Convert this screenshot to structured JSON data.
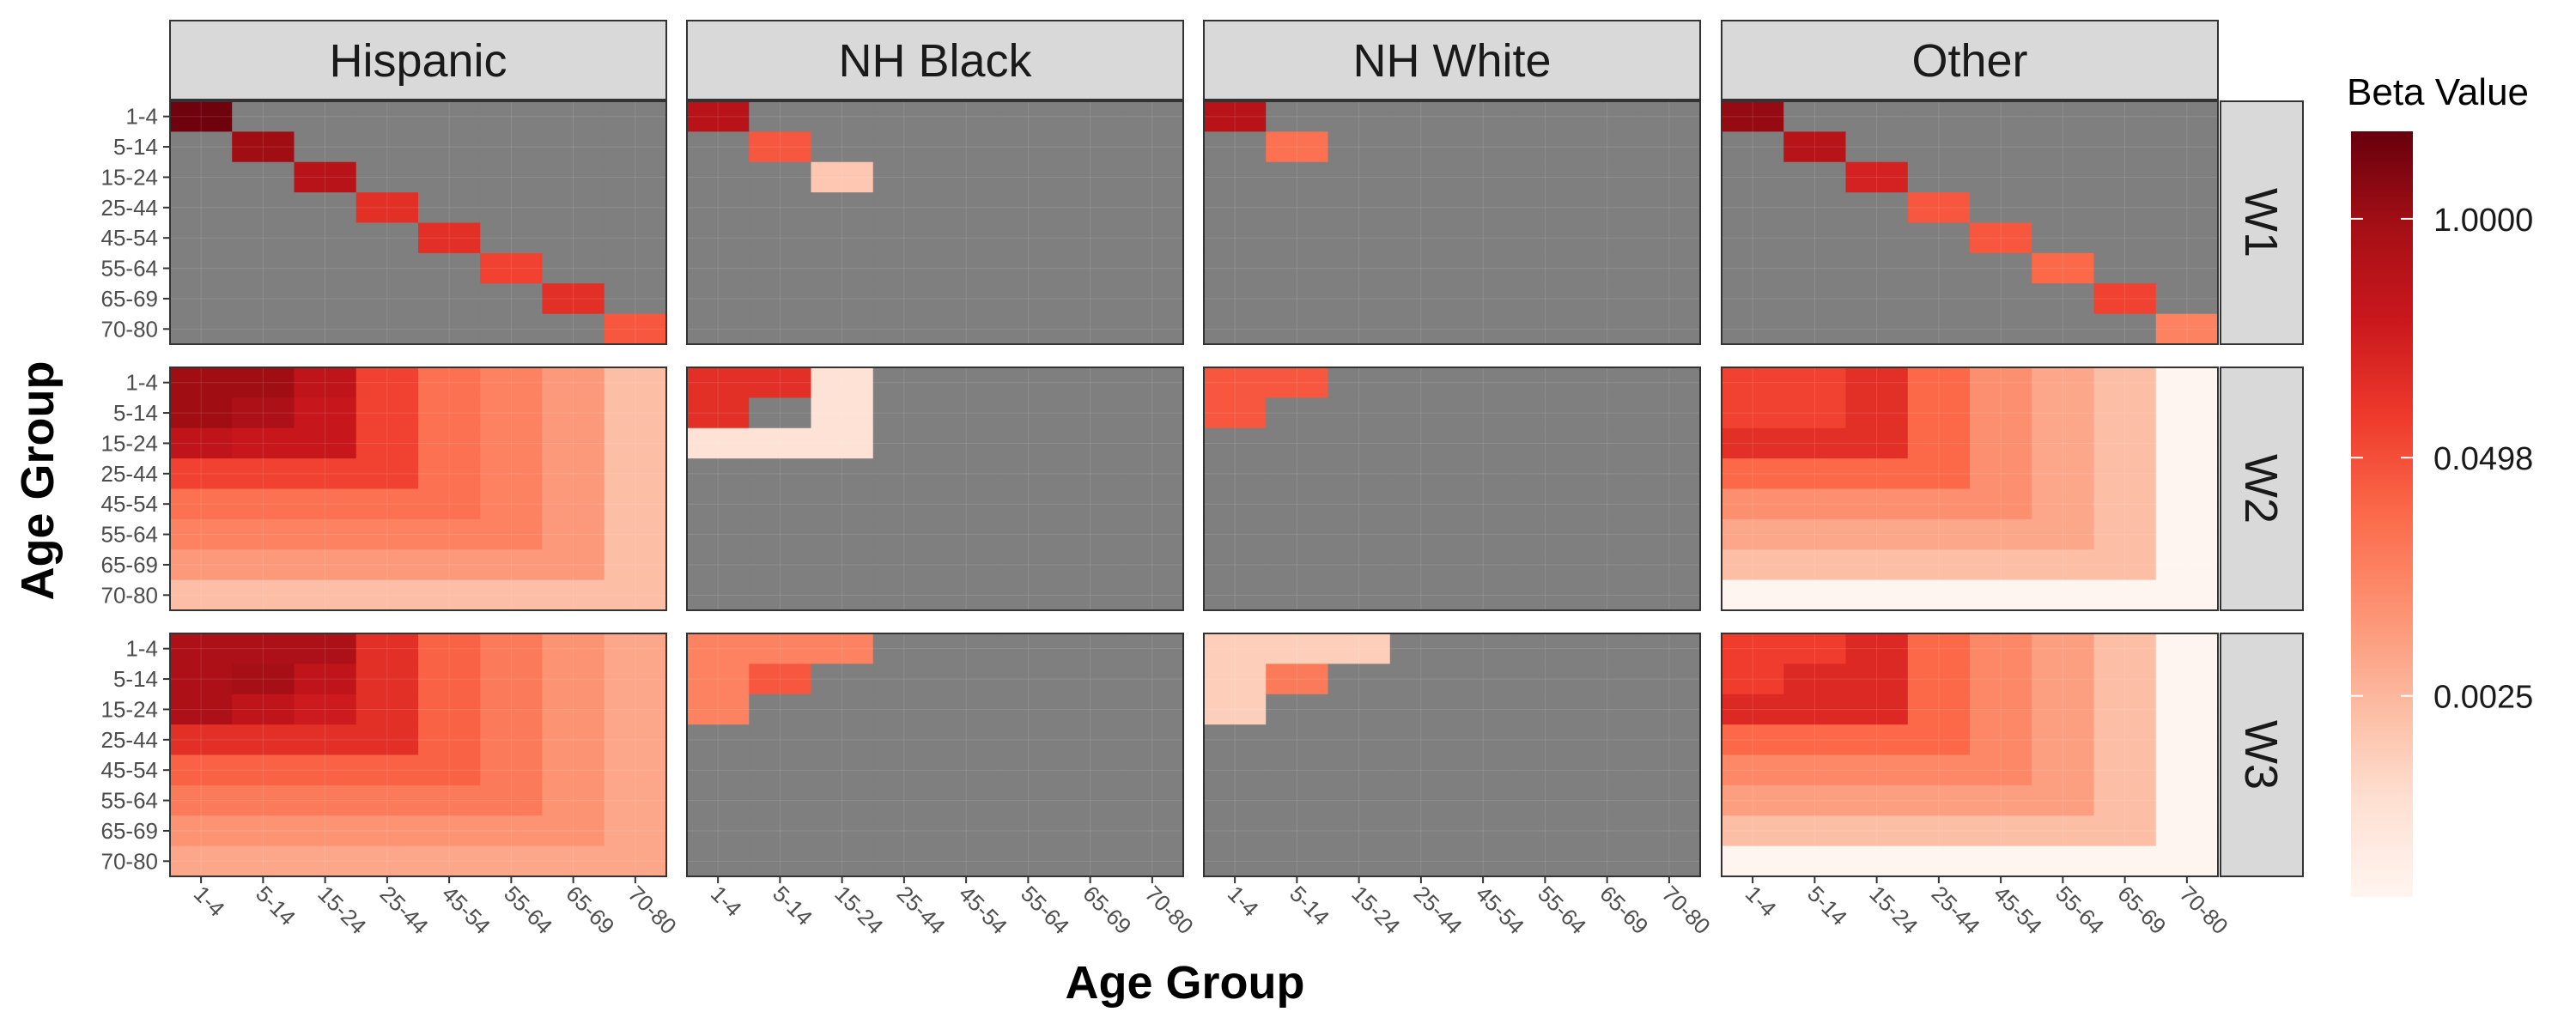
{
  "chart_data": {
    "type": "heatmap",
    "facet_columns": [
      "Hispanic",
      "NH Black",
      "NH White",
      "Other"
    ],
    "facet_rows": [
      "W1",
      "W2",
      "W3"
    ],
    "x_categories": [
      "1-4",
      "5-14",
      "15-24",
      "25-44",
      "45-54",
      "55-64",
      "65-69",
      "70-80"
    ],
    "y_categories": [
      "1-4",
      "5-14",
      "15-24",
      "25-44",
      "45-54",
      "55-64",
      "65-69",
      "70-80"
    ],
    "xlabel": "Age Group",
    "ylabel": "Age Group",
    "legend": {
      "title": "Beta Value",
      "position": "right",
      "scale": "log",
      "breaks": [
        1.0,
        0.0498,
        0.0025
      ],
      "break_labels": [
        "1.0000",
        "0.0498",
        "0.0025"
      ],
      "range": [
        0.0002,
        3.0
      ],
      "colors": [
        "#fff5f0",
        "#fee0d2",
        "#fcbba1",
        "#fc9272",
        "#fb6a4a",
        "#ef3b2c",
        "#cb181d",
        "#a50f15",
        "#67000d"
      ]
    },
    "na_color": "#7f7f7f",
    "panels": [
      {
        "column": "Hispanic",
        "row": "W1",
        "matrix": [
          [
            2.5,
            null,
            null,
            null,
            null,
            null,
            null,
            null
          ],
          [
            null,
            1.0,
            null,
            null,
            null,
            null,
            null,
            null
          ],
          [
            null,
            null,
            0.5,
            null,
            null,
            null,
            null,
            null
          ],
          [
            null,
            null,
            null,
            0.12,
            null,
            null,
            null,
            null
          ],
          [
            null,
            null,
            null,
            null,
            0.12,
            null,
            null,
            null
          ],
          [
            null,
            null,
            null,
            null,
            null,
            0.07,
            null,
            null
          ],
          [
            null,
            null,
            null,
            null,
            null,
            null,
            0.12,
            null
          ],
          [
            null,
            null,
            null,
            null,
            null,
            null,
            null,
            0.04
          ]
        ]
      },
      {
        "column": "NH Black",
        "row": "W1",
        "matrix": [
          [
            0.5,
            null,
            null,
            null,
            null,
            null,
            null,
            null
          ],
          [
            null,
            0.04,
            null,
            null,
            null,
            null,
            null,
            null
          ],
          [
            null,
            null,
            0.0015,
            null,
            null,
            null,
            null,
            null
          ],
          [
            null,
            null,
            null,
            null,
            null,
            null,
            null,
            null
          ],
          [
            null,
            null,
            null,
            null,
            null,
            null,
            null,
            null
          ],
          [
            null,
            null,
            null,
            null,
            null,
            null,
            null,
            null
          ],
          [
            null,
            null,
            null,
            null,
            null,
            null,
            null,
            null
          ],
          [
            null,
            null,
            null,
            null,
            null,
            null,
            null,
            null
          ]
        ]
      },
      {
        "column": "NH White",
        "row": "W1",
        "matrix": [
          [
            0.5,
            null,
            null,
            null,
            null,
            null,
            null,
            null
          ],
          [
            null,
            0.02,
            null,
            null,
            null,
            null,
            null,
            null
          ],
          [
            null,
            null,
            null,
            null,
            null,
            null,
            null,
            null
          ],
          [
            null,
            null,
            null,
            null,
            null,
            null,
            null,
            null
          ],
          [
            null,
            null,
            null,
            null,
            null,
            null,
            null,
            null
          ],
          [
            null,
            null,
            null,
            null,
            null,
            null,
            null,
            null
          ],
          [
            null,
            null,
            null,
            null,
            null,
            null,
            null,
            null
          ],
          [
            null,
            null,
            null,
            null,
            null,
            null,
            null,
            null
          ]
        ]
      },
      {
        "column": "Other",
        "row": "W1",
        "matrix": [
          [
            1.2,
            null,
            null,
            null,
            null,
            null,
            null,
            null
          ],
          [
            null,
            0.5,
            null,
            null,
            null,
            null,
            null,
            null
          ],
          [
            null,
            null,
            0.2,
            null,
            null,
            null,
            null,
            null
          ],
          [
            null,
            null,
            null,
            0.04,
            null,
            null,
            null,
            null
          ],
          [
            null,
            null,
            null,
            null,
            0.04,
            null,
            null,
            null
          ],
          [
            null,
            null,
            null,
            null,
            null,
            0.025,
            null,
            null
          ],
          [
            null,
            null,
            null,
            null,
            null,
            null,
            0.07,
            null
          ],
          [
            null,
            null,
            null,
            null,
            null,
            null,
            null,
            0.012
          ]
        ]
      },
      {
        "column": "Hispanic",
        "row": "W2",
        "matrix": [
          [
            1.0,
            1.0,
            0.4,
            0.07,
            0.02,
            0.012,
            0.006,
            0.002
          ],
          [
            1.0,
            0.7,
            0.3,
            0.07,
            0.02,
            0.012,
            0.006,
            0.002
          ],
          [
            0.4,
            0.3,
            0.3,
            0.07,
            0.02,
            0.012,
            0.006,
            0.002
          ],
          [
            0.07,
            0.07,
            0.07,
            0.07,
            0.02,
            0.012,
            0.006,
            0.002
          ],
          [
            0.02,
            0.02,
            0.02,
            0.02,
            0.02,
            0.012,
            0.006,
            0.002
          ],
          [
            0.012,
            0.012,
            0.012,
            0.012,
            0.012,
            0.012,
            0.006,
            0.002
          ],
          [
            0.006,
            0.006,
            0.006,
            0.006,
            0.006,
            0.006,
            0.006,
            0.002
          ],
          [
            0.002,
            0.002,
            0.002,
            0.002,
            0.002,
            0.002,
            0.002,
            0.002
          ]
        ]
      },
      {
        "column": "NH Black",
        "row": "W2",
        "matrix": [
          [
            0.12,
            0.12,
            0.0006,
            null,
            null,
            null,
            null,
            null
          ],
          [
            0.12,
            null,
            0.0006,
            null,
            null,
            null,
            null,
            null
          ],
          [
            0.0006,
            0.0006,
            0.0006,
            null,
            null,
            null,
            null,
            null
          ],
          [
            null,
            null,
            null,
            null,
            null,
            null,
            null,
            null
          ],
          [
            null,
            null,
            null,
            null,
            null,
            null,
            null,
            null
          ],
          [
            null,
            null,
            null,
            null,
            null,
            null,
            null,
            null
          ],
          [
            null,
            null,
            null,
            null,
            null,
            null,
            null,
            null
          ],
          [
            null,
            null,
            null,
            null,
            null,
            null,
            null,
            null
          ]
        ]
      },
      {
        "column": "NH White",
        "row": "W2",
        "matrix": [
          [
            0.04,
            0.04,
            null,
            null,
            null,
            null,
            null,
            null
          ],
          [
            0.04,
            null,
            null,
            null,
            null,
            null,
            null,
            null
          ],
          [
            null,
            null,
            null,
            null,
            null,
            null,
            null,
            null
          ],
          [
            null,
            null,
            null,
            null,
            null,
            null,
            null,
            null
          ],
          [
            null,
            null,
            null,
            null,
            null,
            null,
            null,
            null
          ],
          [
            null,
            null,
            null,
            null,
            null,
            null,
            null,
            null
          ],
          [
            null,
            null,
            null,
            null,
            null,
            null,
            null,
            null
          ],
          [
            null,
            null,
            null,
            null,
            null,
            null,
            null,
            null
          ]
        ]
      },
      {
        "column": "Other",
        "row": "W2",
        "matrix": [
          [
            0.07,
            0.07,
            0.12,
            0.025,
            0.008,
            0.004,
            0.002,
            0.0002
          ],
          [
            0.07,
            0.07,
            0.12,
            0.025,
            0.008,
            0.004,
            0.002,
            0.0002
          ],
          [
            0.12,
            0.12,
            0.12,
            0.025,
            0.008,
            0.004,
            0.002,
            0.0002
          ],
          [
            0.025,
            0.025,
            0.025,
            0.025,
            0.008,
            0.004,
            0.002,
            0.0002
          ],
          [
            0.008,
            0.008,
            0.008,
            0.008,
            0.008,
            0.004,
            0.002,
            0.0002
          ],
          [
            0.004,
            0.004,
            0.004,
            0.004,
            0.004,
            0.004,
            0.002,
            0.0002
          ],
          [
            0.002,
            0.002,
            0.002,
            0.002,
            0.002,
            0.002,
            0.002,
            0.0002
          ],
          [
            0.0002,
            0.0002,
            0.0002,
            0.0002,
            0.0002,
            0.0002,
            0.0002,
            0.0002
          ]
        ]
      },
      {
        "column": "Hispanic",
        "row": "W3",
        "matrix": [
          [
            0.7,
            0.7,
            0.7,
            0.12,
            0.03,
            0.015,
            0.007,
            0.004
          ],
          [
            0.7,
            0.9,
            0.4,
            0.12,
            0.03,
            0.015,
            0.007,
            0.004
          ],
          [
            0.7,
            0.4,
            0.25,
            0.12,
            0.03,
            0.015,
            0.007,
            0.004
          ],
          [
            0.12,
            0.12,
            0.12,
            0.12,
            0.03,
            0.015,
            0.007,
            0.004
          ],
          [
            0.03,
            0.03,
            0.03,
            0.03,
            0.03,
            0.015,
            0.007,
            0.004
          ],
          [
            0.015,
            0.015,
            0.015,
            0.015,
            0.015,
            0.015,
            0.007,
            0.004
          ],
          [
            0.007,
            0.007,
            0.007,
            0.007,
            0.007,
            0.007,
            0.007,
            0.004
          ],
          [
            0.004,
            0.004,
            0.004,
            0.004,
            0.004,
            0.004,
            0.004,
            0.004
          ]
        ]
      },
      {
        "column": "NH Black",
        "row": "W3",
        "matrix": [
          [
            0.012,
            0.012,
            0.012,
            null,
            null,
            null,
            null,
            null
          ],
          [
            0.012,
            0.04,
            null,
            null,
            null,
            null,
            null,
            null
          ],
          [
            0.012,
            null,
            null,
            null,
            null,
            null,
            null,
            null
          ],
          [
            null,
            null,
            null,
            null,
            null,
            null,
            null,
            null
          ],
          [
            null,
            null,
            null,
            null,
            null,
            null,
            null,
            null
          ],
          [
            null,
            null,
            null,
            null,
            null,
            null,
            null,
            null
          ],
          [
            null,
            null,
            null,
            null,
            null,
            null,
            null,
            null
          ],
          [
            null,
            null,
            null,
            null,
            null,
            null,
            null,
            null
          ]
        ]
      },
      {
        "column": "NH White",
        "row": "W3",
        "matrix": [
          [
            0.0012,
            0.0012,
            0.0012,
            null,
            null,
            null,
            null,
            null
          ],
          [
            0.0012,
            0.015,
            null,
            null,
            null,
            null,
            null,
            null
          ],
          [
            0.0012,
            null,
            null,
            null,
            null,
            null,
            null,
            null
          ],
          [
            null,
            null,
            null,
            null,
            null,
            null,
            null,
            null
          ],
          [
            null,
            null,
            null,
            null,
            null,
            null,
            null,
            null
          ],
          [
            null,
            null,
            null,
            null,
            null,
            null,
            null,
            null
          ],
          [
            null,
            null,
            null,
            null,
            null,
            null,
            null,
            null
          ],
          [
            null,
            null,
            null,
            null,
            null,
            null,
            null,
            null
          ]
        ]
      },
      {
        "column": "Other",
        "row": "W3",
        "matrix": [
          [
            0.08,
            0.08,
            0.15,
            0.025,
            0.01,
            0.005,
            0.002,
            0.0002
          ],
          [
            0.08,
            0.15,
            0.15,
            0.025,
            0.01,
            0.005,
            0.002,
            0.0002
          ],
          [
            0.15,
            0.15,
            0.15,
            0.025,
            0.01,
            0.005,
            0.002,
            0.0002
          ],
          [
            0.025,
            0.025,
            0.025,
            0.025,
            0.01,
            0.005,
            0.002,
            0.0002
          ],
          [
            0.01,
            0.01,
            0.01,
            0.01,
            0.01,
            0.005,
            0.002,
            0.0002
          ],
          [
            0.005,
            0.005,
            0.005,
            0.005,
            0.005,
            0.005,
            0.002,
            0.0002
          ],
          [
            0.002,
            0.002,
            0.002,
            0.002,
            0.002,
            0.002,
            0.002,
            0.0002
          ],
          [
            0.0002,
            0.0002,
            0.0002,
            0.0002,
            0.0002,
            0.0002,
            0.0002,
            0.0002
          ]
        ]
      }
    ]
  }
}
